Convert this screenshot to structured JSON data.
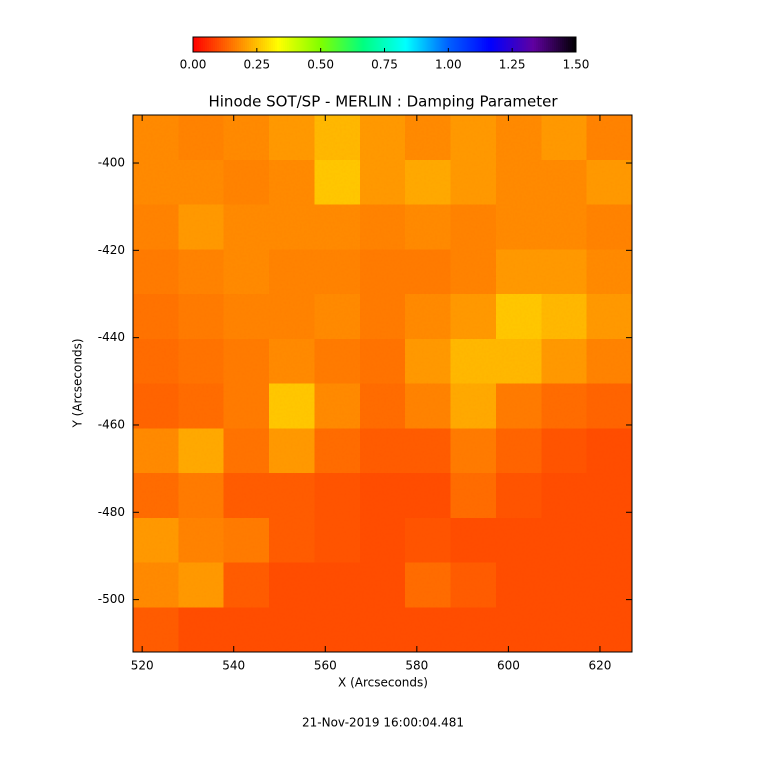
{
  "chart_data": {
    "type": "heatmap",
    "title": "Hinode SOT/SP - MERLIN : Damping Parameter",
    "xlabel": "X (Arcseconds)",
    "ylabel": "Y (Arcseconds)",
    "timestamp": "21-Nov-2019 16:00:04.481",
    "xlim": [
      518,
      627
    ],
    "ylim": [
      -512,
      -389
    ],
    "xticks": [
      520,
      540,
      560,
      580,
      600,
      620
    ],
    "yticks": [
      -500,
      -480,
      -460,
      -440,
      -420,
      -400
    ],
    "clim": [
      0,
      1.5
    ],
    "cticks": [
      {
        "value": 0,
        "label": "0.00"
      },
      {
        "value": 0.25,
        "label": "0.25"
      },
      {
        "value": 0.5,
        "label": "0.50"
      },
      {
        "value": 0.75,
        "label": "0.75"
      },
      {
        "value": 1,
        "label": "1.00"
      },
      {
        "value": 1.25,
        "label": "1.25"
      },
      {
        "value": 1.5,
        "label": "1.50"
      }
    ],
    "colormap": [
      "#ff0000",
      "#ff8000",
      "#ffff00",
      "#80ff00",
      "#00ff80",
      "#00ffff",
      "#0060ff",
      "#0000ff",
      "#6000a0",
      "#000000"
    ],
    "z": [
      [
        0.18,
        0.17,
        0.18,
        0.2,
        0.24,
        0.2,
        0.18,
        0.2,
        0.18,
        0.2,
        0.17
      ],
      [
        0.18,
        0.18,
        0.17,
        0.18,
        0.26,
        0.2,
        0.22,
        0.2,
        0.18,
        0.18,
        0.2
      ],
      [
        0.17,
        0.2,
        0.18,
        0.18,
        0.18,
        0.17,
        0.18,
        0.17,
        0.18,
        0.18,
        0.17
      ],
      [
        0.16,
        0.17,
        0.18,
        0.17,
        0.17,
        0.16,
        0.16,
        0.17,
        0.2,
        0.2,
        0.18
      ],
      [
        0.15,
        0.16,
        0.17,
        0.17,
        0.18,
        0.16,
        0.18,
        0.2,
        0.26,
        0.24,
        0.2
      ],
      [
        0.14,
        0.15,
        0.16,
        0.18,
        0.16,
        0.15,
        0.2,
        0.24,
        0.24,
        0.2,
        0.17
      ],
      [
        0.13,
        0.14,
        0.16,
        0.26,
        0.18,
        0.14,
        0.17,
        0.22,
        0.16,
        0.14,
        0.13
      ],
      [
        0.18,
        0.22,
        0.15,
        0.2,
        0.14,
        0.12,
        0.12,
        0.16,
        0.13,
        0.11,
        0.1
      ],
      [
        0.14,
        0.16,
        0.12,
        0.12,
        0.11,
        0.1,
        0.1,
        0.14,
        0.11,
        0.1,
        0.1
      ],
      [
        0.2,
        0.17,
        0.16,
        0.12,
        0.11,
        0.1,
        0.11,
        0.1,
        0.1,
        0.1,
        0.1
      ],
      [
        0.18,
        0.2,
        0.12,
        0.1,
        0.1,
        0.1,
        0.14,
        0.12,
        0.1,
        0.1,
        0.1
      ],
      [
        0.12,
        0.1,
        0.1,
        0.1,
        0.1,
        0.1,
        0.1,
        0.1,
        0.1,
        0.1,
        0.1
      ]
    ]
  }
}
